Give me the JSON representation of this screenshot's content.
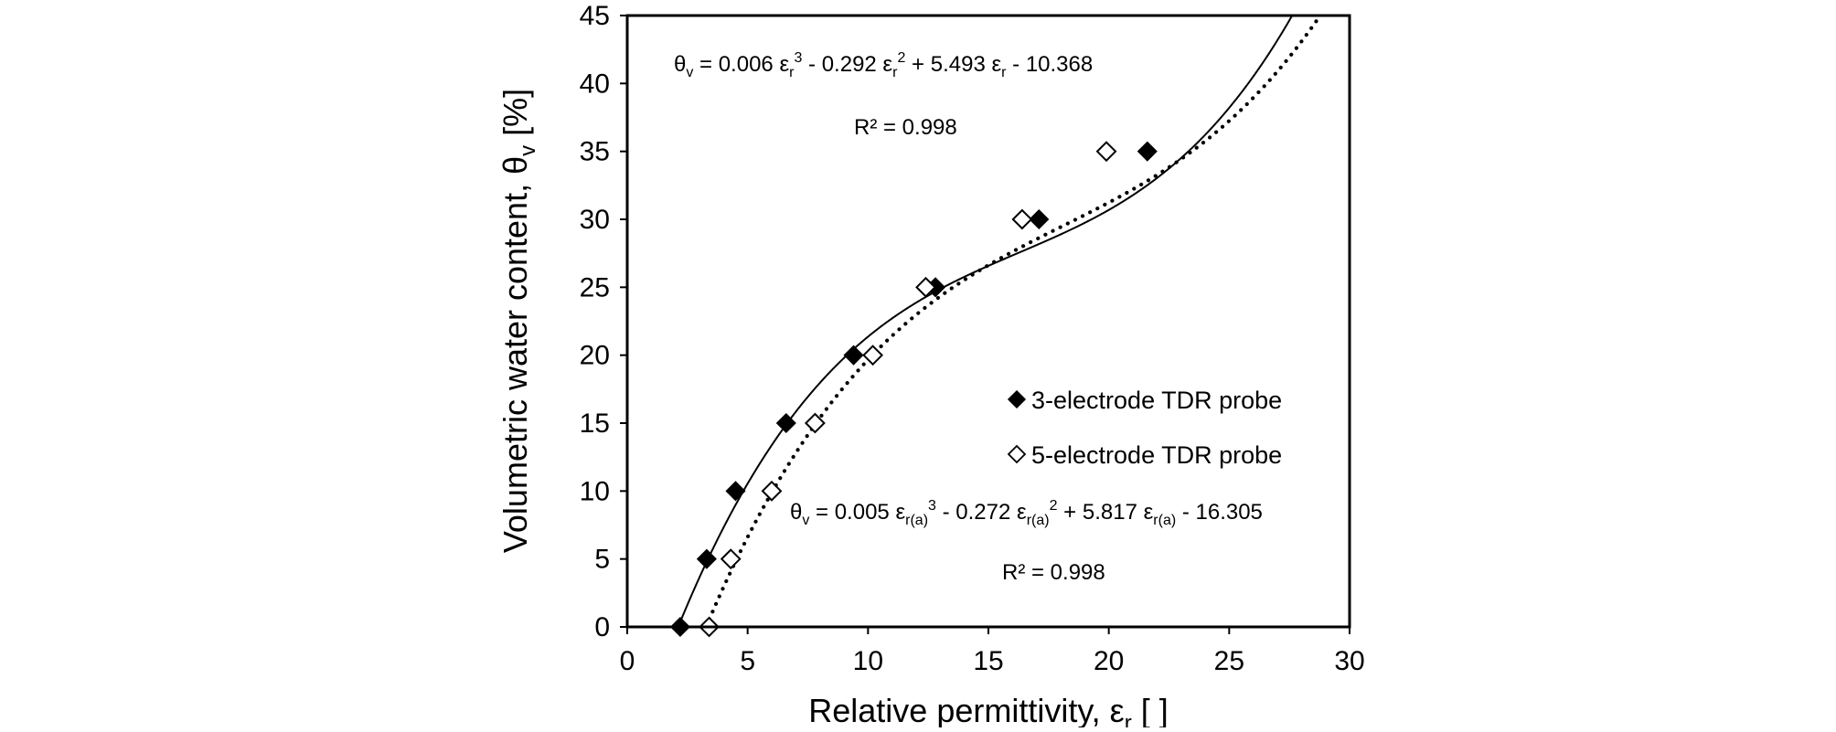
{
  "chart_data": {
    "type": "scatter",
    "title": "",
    "xlabel": {
      "prefix": "Relative permittivity, ε",
      "sub": "r",
      "suffix": " [  ]"
    },
    "ylabel": {
      "prefix": "Volumetric water content, θ",
      "sub": "v",
      "suffix": " [%]"
    },
    "xlim": [
      0,
      30
    ],
    "ylim": [
      0,
      45
    ],
    "x_ticks": [
      "0",
      "5",
      "10",
      "15",
      "20",
      "25",
      "30"
    ],
    "y_ticks": [
      "0",
      "5",
      "10",
      "15",
      "20",
      "25",
      "30",
      "35",
      "40",
      "45"
    ],
    "grid": false,
    "legend_position": "center-right",
    "series": [
      {
        "name": "3-electrode TDR probe",
        "marker": "filled-diamond",
        "color": "#000000",
        "x": [
          2.2,
          3.3,
          4.5,
          6.6,
          9.4,
          12.8,
          17.1,
          21.6
        ],
        "y": [
          0,
          5,
          10,
          15,
          20,
          25,
          30,
          35
        ],
        "fit": {
          "line_style": "solid",
          "coefficients": [
            0.006,
            -0.292,
            5.493,
            -10.368
          ],
          "equation": {
            "t1": "θ",
            "t1_sub": "v",
            "t2": " = 0.006 ε",
            "t2_sub": "r",
            "t2_sup": "3",
            "t3": " - 0.292 ε",
            "t3_sub": "r",
            "t3_sup": "2",
            "t4": " + 5.493 ε",
            "t4_sub": "r",
            "t5": " - 10.368"
          },
          "r2_label": "R² = 0.998"
        }
      },
      {
        "name": "5-electrode TDR probe",
        "marker": "open-diamond",
        "color": "#000000",
        "x": [
          3.4,
          4.3,
          6.0,
          7.8,
          10.2,
          12.4,
          16.4,
          19.9
        ],
        "y": [
          0,
          5,
          10,
          15,
          20,
          25,
          30,
          35
        ],
        "fit": {
          "line_style": "dotted",
          "coefficients": [
            0.005,
            -0.272,
            5.817,
            -16.305
          ],
          "equation": {
            "t1": "θ",
            "t1_sub": "v",
            "t2": " = 0.005 ε",
            "t2_sub": "r(a)",
            "t2_sup": "3",
            "t3": " - 0.272 ε",
            "t3_sub": "r(a)",
            "t3_sup": "2",
            "t4": " + 5.817 ε",
            "t4_sub": "r(a)",
            "t5": " - 16.305"
          },
          "r2_label": "R² = 0.998"
        }
      }
    ]
  }
}
